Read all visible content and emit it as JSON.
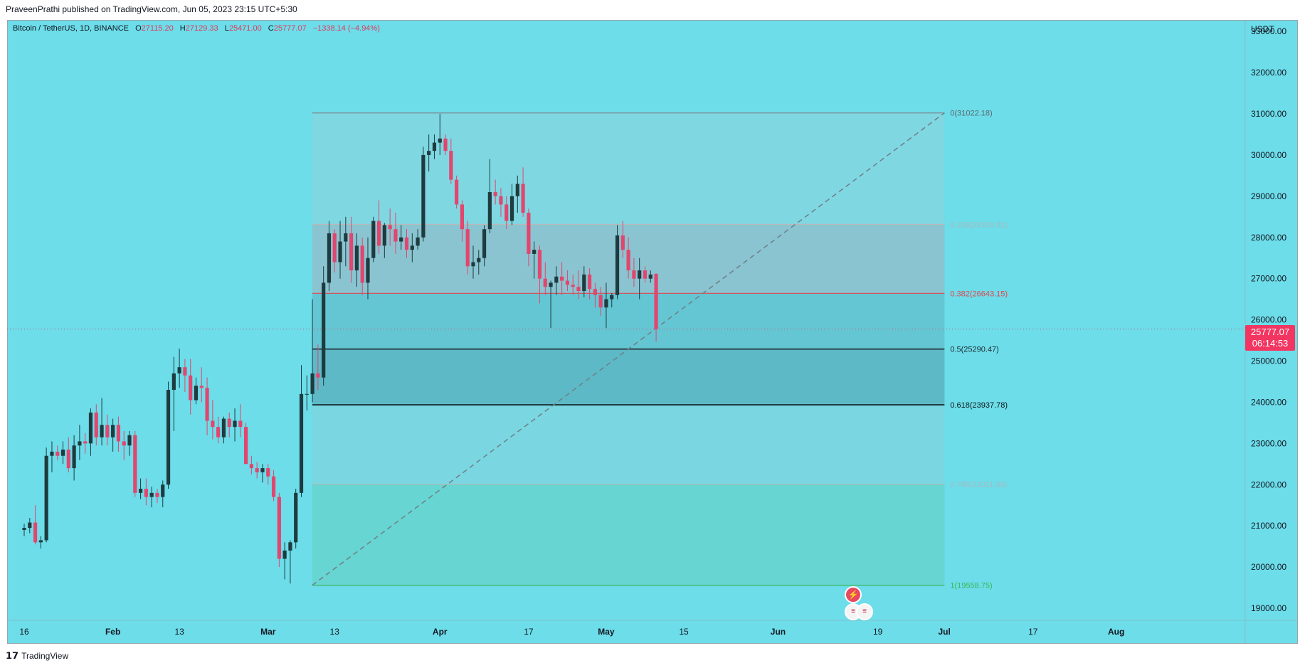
{
  "header": {
    "publisher": "PraveenPrathi published on TradingView.com, Jun 05, 2023 23:15 UTC+5:30"
  },
  "legend": {
    "symbol": "Bitcoin / TetherUS, 1D, BINANCE",
    "open_label": "O",
    "open": "27115.20",
    "high_label": "H",
    "high": "27129.33",
    "low_label": "L",
    "low": "25471.00",
    "close_label": "C",
    "close": "25777.07",
    "change": "−1338.14 (−4.94%)"
  },
  "currency": "USDT",
  "price_badge": {
    "price": "25777.07",
    "countdown": "06:14:53"
  },
  "footer": {
    "brand": "TradingView"
  },
  "colors": {
    "background": "#6cdde9",
    "up": "#1e3b3f",
    "down": "#e2466e",
    "fib_0_382": "#e0484f",
    "fib_0_5": "#1f2a30",
    "fib_0_618": "#10181c",
    "fib_1": "#3cb556"
  },
  "chart_data": {
    "type": "candlestick",
    "symbol": "Bitcoin / TetherUS",
    "timeframe": "1D",
    "ylim": [
      18700,
      33200
    ],
    "yticks": [
      19000,
      20000,
      21000,
      22000,
      23000,
      24000,
      25000,
      26000,
      27000,
      28000,
      29000,
      30000,
      31000,
      32000,
      33000
    ],
    "ytick_labels": [
      "19000.00",
      "20000.00",
      "21000.00",
      "22000.00",
      "23000.00",
      "24000.00",
      "25000.00",
      "26000.00",
      "27000.00",
      "28000.00",
      "29000.00",
      "30000.00",
      "31000.00",
      "32000.00",
      "33000.00"
    ],
    "xtick_labels": [
      {
        "label": "16",
        "i": 0
      },
      {
        "label": "Feb",
        "i": 16
      },
      {
        "label": "13",
        "i": 28
      },
      {
        "label": "Mar",
        "i": 44
      },
      {
        "label": "13",
        "i": 56
      },
      {
        "label": "Apr",
        "i": 75
      },
      {
        "label": "17",
        "i": 91
      },
      {
        "label": "May",
        "i": 105
      },
      {
        "label": "15",
        "i": 119
      },
      {
        "label": "Jun",
        "i": 136
      },
      {
        "label": "19",
        "i": 154
      },
      {
        "label": "Jul",
        "i": 166
      },
      {
        "label": "17",
        "i": 182
      },
      {
        "label": "Aug",
        "i": 197
      }
    ],
    "fib_levels": [
      {
        "ratio": "0",
        "price": 31022.18,
        "label": "0(31022.18)"
      },
      {
        "ratio": "0.236",
        "price": 28316.81,
        "label": "0.236(28316.81)"
      },
      {
        "ratio": "0.382",
        "price": 26643.15,
        "label": "0.382(26643.15)"
      },
      {
        "ratio": "0.5",
        "price": 25290.47,
        "label": "0.5(25290.47)"
      },
      {
        "ratio": "0.618",
        "price": 23937.78,
        "label": "0.618(23937.78)"
      },
      {
        "ratio": "0.786",
        "price": 22011.93,
        "label": "0.786(22011.93)"
      },
      {
        "ratio": "1",
        "price": 19558.75,
        "label": "1(19558.75)"
      }
    ],
    "fib_range_candle_index": [
      53,
      165
    ],
    "last_price": 25777.07,
    "candles": [
      [
        20900,
        21050,
        20750,
        20950
      ],
      [
        20950,
        21190,
        20820,
        21080
      ],
      [
        21080,
        21500,
        20550,
        20600
      ],
      [
        20600,
        20750,
        20450,
        20650
      ],
      [
        20650,
        22900,
        20600,
        22700
      ],
      [
        22700,
        23050,
        22300,
        22800
      ],
      [
        22800,
        22950,
        22600,
        22700
      ],
      [
        22700,
        23050,
        22500,
        22850
      ],
      [
        22850,
        23150,
        22300,
        22400
      ],
      [
        22400,
        23200,
        22100,
        22950
      ],
      [
        22950,
        23450,
        22600,
        23050
      ],
      [
        23050,
        23250,
        22750,
        23000
      ],
      [
        23000,
        23850,
        22700,
        23750
      ],
      [
        23750,
        23950,
        22950,
        23150
      ],
      [
        23150,
        24100,
        22950,
        23450
      ],
      [
        23450,
        23700,
        22950,
        23150
      ],
      [
        23150,
        23600,
        22800,
        23450
      ],
      [
        23450,
        23650,
        22800,
        23050
      ],
      [
        23050,
        23300,
        22600,
        22950
      ],
      [
        22950,
        23300,
        22700,
        23200
      ],
      [
        23200,
        23300,
        21700,
        21800
      ],
      [
        21800,
        22150,
        21650,
        21900
      ],
      [
        21900,
        22150,
        21500,
        21700
      ],
      [
        21700,
        21950,
        21450,
        21800
      ],
      [
        21800,
        21900,
        21550,
        21700
      ],
      [
        21700,
        22100,
        21450,
        22000
      ],
      [
        22000,
        24500,
        21900,
        24300
      ],
      [
        24300,
        25100,
        23300,
        24700
      ],
      [
        24700,
        25300,
        24350,
        24850
      ],
      [
        24850,
        25050,
        24250,
        24650
      ],
      [
        24650,
        25050,
        23700,
        24050
      ],
      [
        24050,
        24600,
        23950,
        24400
      ],
      [
        24400,
        24850,
        24000,
        24350
      ],
      [
        24350,
        24600,
        23200,
        23550
      ],
      [
        23550,
        24050,
        23100,
        23400
      ],
      [
        23400,
        23650,
        23000,
        23150
      ],
      [
        23150,
        23650,
        23000,
        23600
      ],
      [
        23600,
        23750,
        23150,
        23400
      ],
      [
        23400,
        23850,
        23050,
        23550
      ],
      [
        23550,
        23950,
        23150,
        23400
      ],
      [
        23400,
        23500,
        22600,
        22500
      ],
      [
        22500,
        22700,
        22250,
        22400
      ],
      [
        22400,
        22550,
        22150,
        22300
      ],
      [
        22300,
        22500,
        22050,
        22400
      ],
      [
        22400,
        22500,
        22000,
        22200
      ],
      [
        22200,
        22350,
        21600,
        21700
      ],
      [
        21700,
        21800,
        20000,
        20200
      ],
      [
        20200,
        20600,
        19700,
        20400
      ],
      [
        20400,
        20650,
        19600,
        20600
      ],
      [
        20600,
        21900,
        20450,
        21800
      ],
      [
        21800,
        24900,
        21700,
        24200
      ],
      [
        24200,
        24650,
        23800,
        24200
      ],
      [
        24200,
        26500,
        24000,
        24700
      ],
      [
        24700,
        25400,
        24300,
        24600
      ],
      [
        24600,
        27300,
        24400,
        26900
      ],
      [
        26900,
        28400,
        26700,
        28100
      ],
      [
        28100,
        28200,
        27150,
        27400
      ],
      [
        27400,
        28400,
        27000,
        27900
      ],
      [
        27900,
        28500,
        27300,
        28100
      ],
      [
        28100,
        28500,
        26900,
        27200
      ],
      [
        27200,
        28100,
        26800,
        27800
      ],
      [
        27800,
        28000,
        26600,
        26900
      ],
      [
        26900,
        28000,
        26500,
        27500
      ],
      [
        27500,
        28500,
        27400,
        28400
      ],
      [
        28400,
        28900,
        27600,
        27800
      ],
      [
        27800,
        28350,
        27500,
        28300
      ],
      [
        28300,
        28700,
        27800,
        28200
      ],
      [
        28200,
        28600,
        27600,
        27900
      ],
      [
        27900,
        28300,
        27700,
        28000
      ],
      [
        28000,
        28200,
        27500,
        27700
      ],
      [
        27700,
        28100,
        27400,
        27800
      ],
      [
        27800,
        28200,
        27700,
        28000
      ],
      [
        28000,
        30200,
        27900,
        30000
      ],
      [
        30000,
        30500,
        29600,
        30100
      ],
      [
        30100,
        30500,
        29900,
        30300
      ],
      [
        30300,
        31000,
        30000,
        30400
      ],
      [
        30400,
        30500,
        30000,
        30100
      ],
      [
        30100,
        30400,
        29300,
        29400
      ],
      [
        29400,
        29500,
        28700,
        28800
      ],
      [
        28800,
        28900,
        27900,
        28200
      ],
      [
        28200,
        28400,
        27100,
        27300
      ],
      [
        27300,
        27800,
        27000,
        27400
      ],
      [
        27400,
        27700,
        27100,
        27500
      ],
      [
        27500,
        28300,
        27300,
        28200
      ],
      [
        28200,
        29900,
        28100,
        29100
      ],
      [
        29100,
        29400,
        28800,
        29000
      ],
      [
        29000,
        29200,
        28500,
        28800
      ],
      [
        28800,
        29000,
        28200,
        28400
      ],
      [
        28400,
        29300,
        28300,
        29000
      ],
      [
        29000,
        29500,
        28600,
        29300
      ],
      [
        29300,
        29700,
        28500,
        28600
      ],
      [
        28600,
        28700,
        27300,
        27600
      ],
      [
        27600,
        27900,
        27000,
        27700
      ],
      [
        27700,
        27800,
        26400,
        27000
      ],
      [
        27000,
        27400,
        26600,
        26800
      ],
      [
        26800,
        26950,
        25800,
        26900
      ],
      [
        26900,
        27300,
        26600,
        27050
      ],
      [
        27050,
        27400,
        26600,
        26950
      ],
      [
        26950,
        27200,
        26700,
        26850
      ],
      [
        26850,
        27100,
        26600,
        26800
      ],
      [
        26800,
        27200,
        26500,
        26700
      ],
      [
        26700,
        27300,
        26550,
        27100
      ],
      [
        27100,
        27250,
        26500,
        26750
      ],
      [
        26750,
        26900,
        26300,
        26600
      ],
      [
        26600,
        26800,
        26100,
        26300
      ],
      [
        26300,
        26900,
        25800,
        26500
      ],
      [
        26500,
        26650,
        26300,
        26600
      ],
      [
        26600,
        28300,
        26500,
        28050
      ],
      [
        28050,
        28400,
        27500,
        27700
      ],
      [
        27700,
        28000,
        27000,
        27200
      ],
      [
        27200,
        27500,
        26800,
        27000
      ],
      [
        27000,
        27500,
        26500,
        27200
      ],
      [
        27200,
        27300,
        26900,
        27000
      ],
      [
        27000,
        27200,
        26900,
        27100
      ],
      [
        27115.2,
        27129.33,
        25471,
        25777.07
      ]
    ]
  }
}
